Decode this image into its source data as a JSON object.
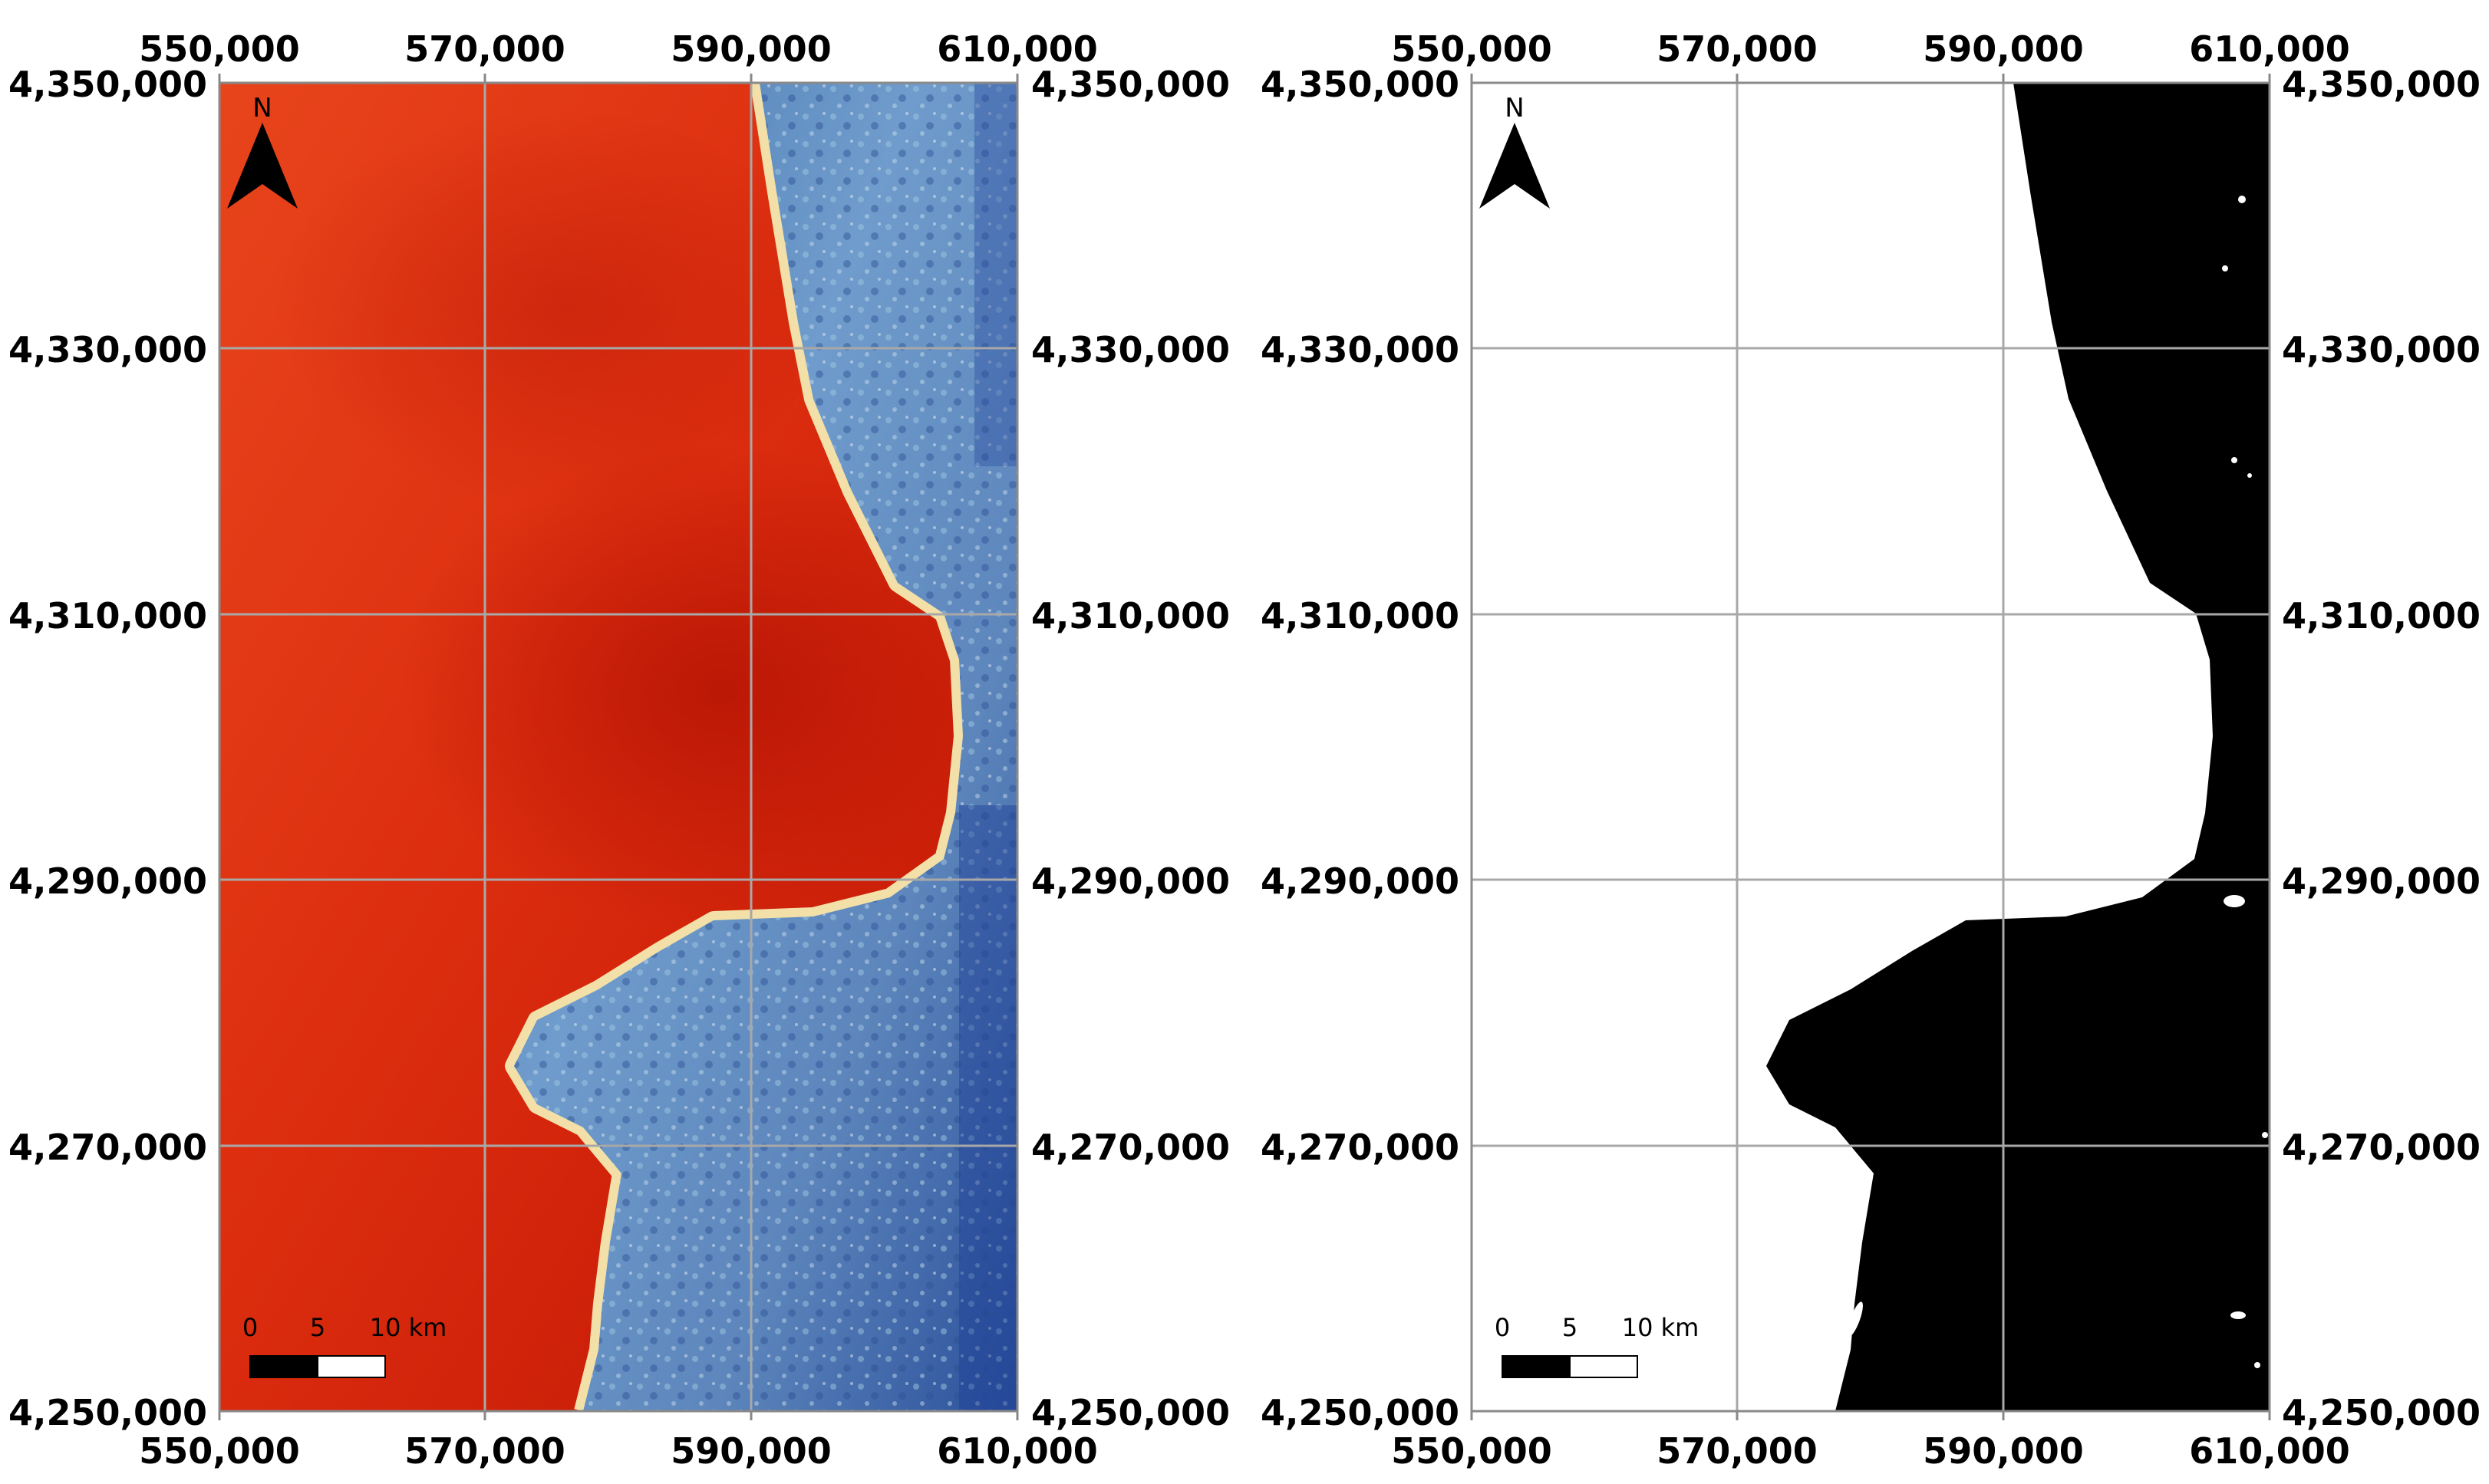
{
  "maps": [
    {
      "id": "composite",
      "x_ticks": [
        "550,000",
        "570,000",
        "590,000",
        "610,000"
      ],
      "y_ticks": [
        "4,350,000",
        "4,330,000",
        "4,310,000",
        "4,290,000",
        "4,270,000",
        "4,250,000"
      ],
      "north_label": "N",
      "scale_labels": [
        "0",
        "5",
        "10 km"
      ],
      "colors": {
        "sea": "#e02a10",
        "land": "#5f86b8",
        "coast": "#e6d9a8"
      }
    },
    {
      "id": "water-mask",
      "x_ticks": [
        "550,000",
        "570,000",
        "590,000",
        "610,000"
      ],
      "y_ticks": [
        "4,350,000",
        "4,330,000",
        "4,310,000",
        "4,290,000",
        "4,270,000",
        "4,250,000"
      ],
      "north_label": "N",
      "scale_labels": [
        "0",
        "5",
        "10 km"
      ],
      "colors": {
        "water": "#ffffff",
        "land": "#000000"
      }
    }
  ]
}
